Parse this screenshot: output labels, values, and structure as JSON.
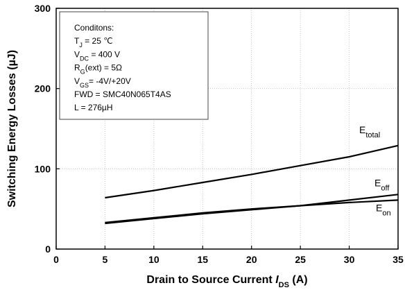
{
  "chart_data": {
    "type": "line",
    "title": "",
    "xlabel": "Drain to Source Current I_DS (A)",
    "xlabel_parts": {
      "main": "Drain to Source Current ",
      "italic": "I",
      "sub": "DS",
      "unit": " (A)"
    },
    "ylabel": "Switching Energy Losses (µJ)",
    "xlim": [
      0,
      35
    ],
    "ylim": [
      0,
      300
    ],
    "xticks": [
      0,
      5,
      10,
      15,
      20,
      25,
      30,
      35
    ],
    "yticks": [
      0,
      100,
      200,
      300
    ],
    "grid": "dotted",
    "series": [
      {
        "name": "Etotal",
        "label_main": "E",
        "label_sub": "total",
        "color": "#000000",
        "x": [
          5,
          10,
          15,
          20,
          25,
          30,
          35
        ],
        "y": [
          64,
          73,
          83,
          93,
          104,
          115,
          129
        ]
      },
      {
        "name": "Eoff",
        "label_main": "E",
        "label_sub": "off",
        "color": "#000000",
        "x": [
          5,
          10,
          15,
          20,
          25,
          30,
          35
        ],
        "y": [
          32,
          38,
          44,
          49,
          54,
          61,
          68
        ]
      },
      {
        "name": "Eon",
        "label_main": "E",
        "label_sub": "on",
        "color": "#000000",
        "x": [
          5,
          10,
          15,
          20,
          25,
          30,
          35
        ],
        "y": [
          33,
          39,
          45,
          50,
          54,
          58,
          61
        ]
      }
    ],
    "annotation": {
      "lines": [
        {
          "main": "Conditons:",
          "sub": "",
          "rest": ""
        },
        {
          "main": "T",
          "sub": "J",
          "rest": " =  25 ℃"
        },
        {
          "main": "V",
          "sub": "DC",
          "rest": " = 400 V"
        },
        {
          "main": "R",
          "sub": "G",
          "rest": "(ext) = 5Ω"
        },
        {
          "main": "V",
          "sub": "GS",
          "rest": "=  -4V/+20V"
        },
        {
          "main": "FWD = SMC40N065T4AS",
          "sub": "",
          "rest": ""
        },
        {
          "main": "L = 276µH",
          "sub": "",
          "rest": ""
        }
      ]
    }
  }
}
